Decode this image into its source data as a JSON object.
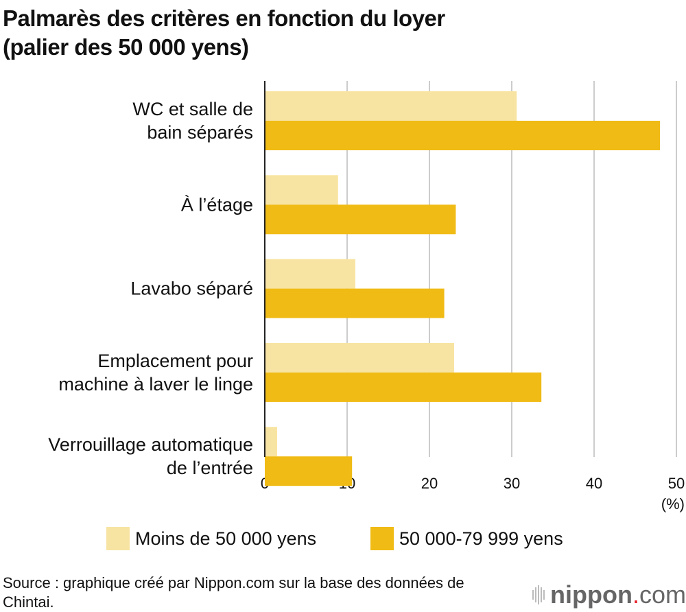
{
  "chart_data": {
    "type": "bar",
    "orientation": "horizontal",
    "title": "Palmarès des critères en fonction du loyer\n(palier des 50 000 yens)",
    "title_lines": [
      "Palmarès des critères en fonction du loyer",
      "(palier des 50 000 yens)"
    ],
    "categories": [
      [
        "WC et salle de",
        "bain séparés"
      ],
      [
        "À l’étage"
      ],
      [
        "Lavabo séparé"
      ],
      [
        "Emplacement pour",
        "machine à laver le linge"
      ],
      [
        "Verrouillage automatique",
        "de l’entrée"
      ]
    ],
    "series": [
      {
        "name": "Moins de 50 000 yens",
        "color": "#f8e4a2",
        "values": [
          30.6,
          8.9,
          11.0,
          23.0,
          1.5
        ]
      },
      {
        "name": "50 000-79 999 yens",
        "color": "#f0bb14",
        "values": [
          48.0,
          23.2,
          21.8,
          33.6,
          10.6
        ]
      }
    ],
    "xlim": [
      0,
      50
    ],
    "xticks": [
      "0",
      "10",
      "20",
      "30",
      "40",
      "50"
    ],
    "xunit": "(%)",
    "grid": true,
    "legend": "bottom"
  },
  "source": "Source : graphique créé par Nippon.com sur la base des données de Chintai.",
  "logo": {
    "main": "nippon",
    "dot": ".",
    "suffix": "com",
    "dot_color": "#e8202a"
  }
}
